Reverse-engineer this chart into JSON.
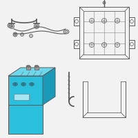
{
  "bg_color": "#f2f2f2",
  "battery_color": "#2bbfde",
  "battery_dark": "#1a9ab8",
  "battery_top": "#6dd8ec",
  "battery_top2": "#45c8e0",
  "line_color": "#5a5a5a",
  "line_width": 0.7,
  "fig_bg": "#f2f2f2"
}
